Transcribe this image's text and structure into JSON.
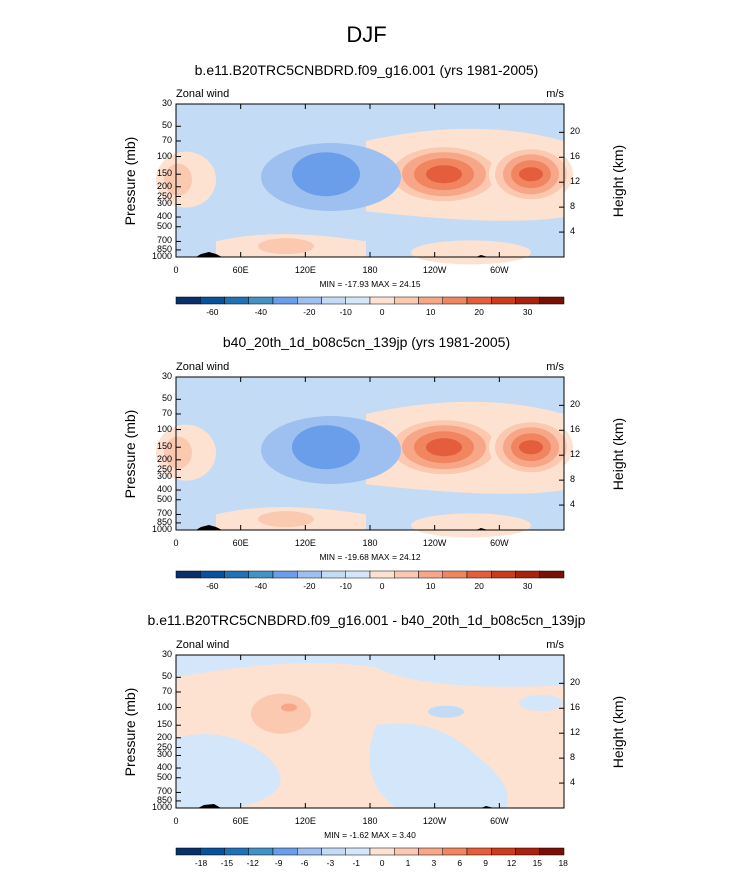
{
  "title": "DJF",
  "colors": {
    "contour": [
      "#08306b",
      "#08519c",
      "#2171b5",
      "#4292c6",
      "#6a9eea",
      "#9ec0f0",
      "#c4dbf6",
      "#d3e6fa",
      "#fde2d2",
      "#fbc8b0",
      "#f7a788",
      "#f08560",
      "#e45d3c",
      "#cc3b1c",
      "#a8220e",
      "#7a1005"
    ],
    "land": "#000000"
  },
  "chart_data": [
    {
      "type": "contour",
      "title": "b.e11.B20TRC5CNBDRD.f09_g16.001 (yrs 1981-2005)",
      "left_label": "Zonal wind",
      "right_label": "m/s",
      "ylabel": "Pressure (mb)",
      "ylabel_right": "Height (km)",
      "x_ticks": [
        "0",
        "60E",
        "120E",
        "180",
        "120W",
        "60W"
      ],
      "y_ticks": [
        "30",
        "50",
        "70",
        "100",
        "150",
        "200",
        "250",
        "300",
        "400",
        "500",
        "700",
        "850",
        "1000"
      ],
      "y_ticks_right": [
        "20",
        "16",
        "12",
        "8",
        "4"
      ],
      "stats": "MIN = -17.93  MAX = 24.15",
      "colorbar_labels": [
        "-60",
        "-40",
        "-20",
        "-10",
        "0",
        "10",
        "20",
        "30"
      ]
    },
    {
      "type": "contour",
      "title": "b40_20th_1d_b08c5cn_139jp (yrs 1981-2005)",
      "left_label": "Zonal wind",
      "right_label": "m/s",
      "ylabel": "Pressure (mb)",
      "ylabel_right": "Height (km)",
      "x_ticks": [
        "0",
        "60E",
        "120E",
        "180",
        "120W",
        "60W"
      ],
      "y_ticks": [
        "30",
        "50",
        "70",
        "100",
        "150",
        "200",
        "250",
        "300",
        "400",
        "500",
        "700",
        "850",
        "1000"
      ],
      "y_ticks_right": [
        "20",
        "16",
        "12",
        "8",
        "4"
      ],
      "stats": "MIN = -19.68  MAX = 24.12",
      "colorbar_labels": [
        "-60",
        "-40",
        "-20",
        "-10",
        "0",
        "10",
        "20",
        "30"
      ]
    },
    {
      "type": "contour",
      "title": "b.e11.B20TRC5CNBDRD.f09_g16.001 - b40_20th_1d_b08c5cn_139jp",
      "left_label": "Zonal wind",
      "right_label": "m/s",
      "ylabel": "Pressure (mb)",
      "ylabel_right": "Height (km)",
      "x_ticks": [
        "0",
        "60E",
        "120E",
        "180",
        "120W",
        "60W"
      ],
      "y_ticks": [
        "30",
        "50",
        "70",
        "100",
        "150",
        "200",
        "250",
        "300",
        "400",
        "500",
        "700",
        "850",
        "1000"
      ],
      "y_ticks_right": [
        "20",
        "16",
        "12",
        "8",
        "4"
      ],
      "stats": "MIN = -1.62  MAX = 3.40",
      "colorbar_labels": [
        "-18",
        "-15",
        "-12",
        "-9",
        "-6",
        "-3",
        "-1",
        "0",
        "1",
        "3",
        "6",
        "9",
        "12",
        "15",
        "18"
      ]
    }
  ]
}
